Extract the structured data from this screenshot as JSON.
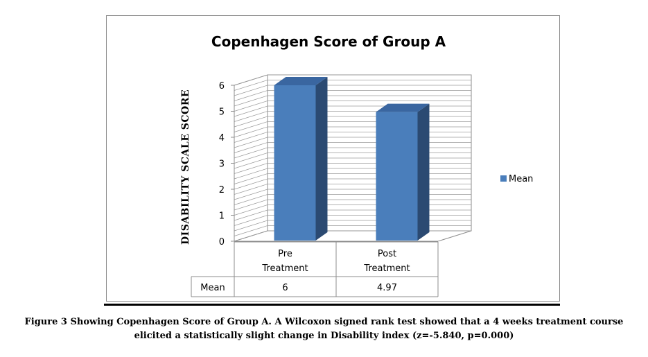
{
  "chart_data": {
    "type": "bar",
    "title": "Copenhagen Score of Group A",
    "ylabel": "DISABILITY SCALE SCORE",
    "xlabel": "",
    "categories": [
      [
        "Pre",
        "Treatment"
      ],
      [
        "Post",
        "Treatment"
      ]
    ],
    "series": [
      {
        "name": "Mean",
        "values": [
          6,
          4.97
        ],
        "value_labels": [
          "6",
          "4.97"
        ],
        "color": "#4a7ebb"
      }
    ],
    "ylim": [
      0,
      6
    ],
    "yticks": [
      0,
      1,
      2,
      3,
      4,
      5,
      6
    ],
    "grid": true,
    "three_d": true,
    "legend_position": "right",
    "data_table": true,
    "data_table_row_label": "Mean"
  },
  "caption": {
    "line1": "Figure 3 Showing Copenhagen Score of Group A. A Wilcoxon signed rank test showed that a 4 weeks treatment course",
    "line2": "elicited a statistically slight change in Disability index (z=-5.840, p=0.000)"
  }
}
